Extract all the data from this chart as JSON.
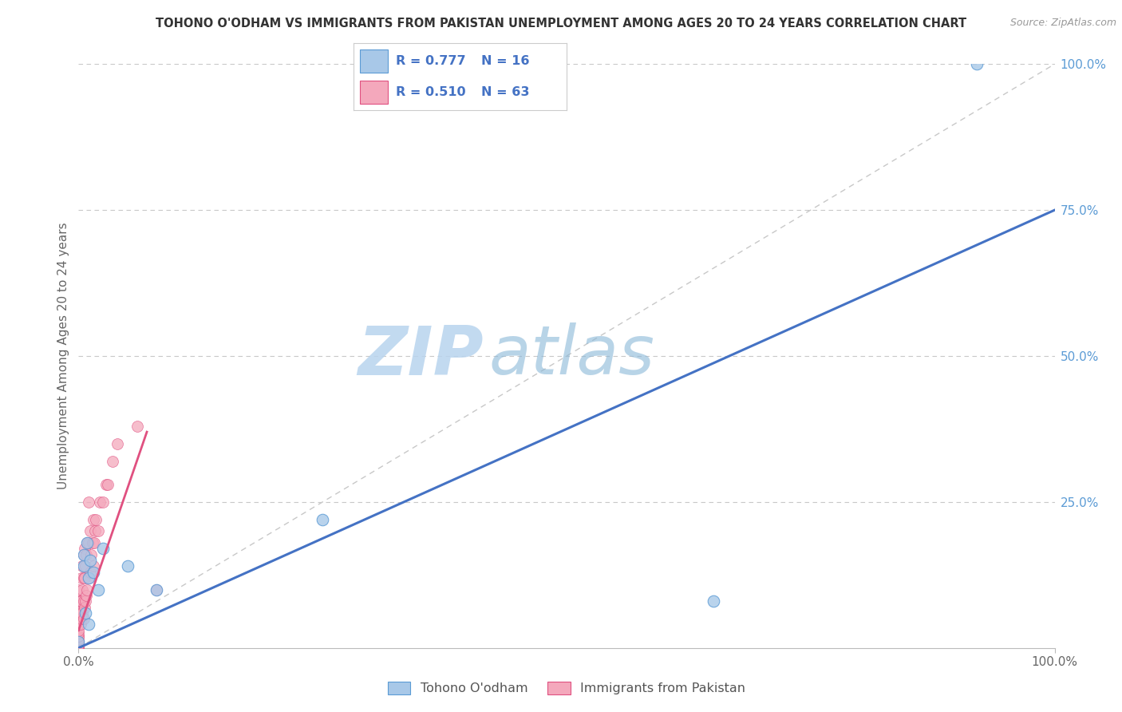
{
  "title": "TOHONO O'ODHAM VS IMMIGRANTS FROM PAKISTAN UNEMPLOYMENT AMONG AGES 20 TO 24 YEARS CORRELATION CHART",
  "source": "Source: ZipAtlas.com",
  "ylabel": "Unemployment Among Ages 20 to 24 years",
  "xlim": [
    0,
    1.0
  ],
  "ylim": [
    0,
    1.0
  ],
  "ytick_labels": [
    "25.0%",
    "50.0%",
    "75.0%",
    "100.0%"
  ],
  "ytick_positions": [
    0.25,
    0.5,
    0.75,
    1.0
  ],
  "watermark_zip": "ZIP",
  "watermark_atlas": "atlas",
  "legend_r1": "0.777",
  "legend_n1": "16",
  "legend_r2": "0.510",
  "legend_n2": "63",
  "color_blue_fill": "#a8c8e8",
  "color_blue_edge": "#5b9bd5",
  "color_pink_fill": "#f4a8bc",
  "color_pink_edge": "#e05080",
  "color_trend_blue": "#4472c4",
  "color_trend_pink": "#e05080",
  "color_diag": "#c8c8c8",
  "legend_label1": "Tohono O'odham",
  "legend_label2": "Immigrants from Pakistan",
  "title_color": "#333333",
  "axis_label_color": "#666666",
  "tick_label_color_right": "#5b9bd5",
  "blue_line_x": [
    0.0,
    1.0
  ],
  "blue_line_y": [
    0.0,
    0.75
  ],
  "pink_line_x": [
    0.0,
    0.07
  ],
  "pink_line_y": [
    0.03,
    0.37
  ],
  "tohono_x": [
    0.0,
    0.005,
    0.005,
    0.007,
    0.009,
    0.01,
    0.01,
    0.012,
    0.015,
    0.02,
    0.025,
    0.05,
    0.08,
    0.25,
    0.65,
    0.92
  ],
  "tohono_y": [
    0.01,
    0.14,
    0.16,
    0.06,
    0.18,
    0.04,
    0.12,
    0.15,
    0.13,
    0.1,
    0.17,
    0.14,
    0.1,
    0.22,
    0.08,
    1.0
  ],
  "pakistan_x": [
    0.0,
    0.0,
    0.0,
    0.0,
    0.0,
    0.0,
    0.0,
    0.0,
    0.0,
    0.0,
    0.0,
    0.0,
    0.0,
    0.0,
    0.0,
    0.0,
    0.0,
    0.0,
    0.0,
    0.0,
    0.002,
    0.002,
    0.002,
    0.003,
    0.003,
    0.003,
    0.004,
    0.004,
    0.004,
    0.005,
    0.005,
    0.005,
    0.005,
    0.006,
    0.006,
    0.006,
    0.007,
    0.007,
    0.008,
    0.008,
    0.009,
    0.009,
    0.01,
    0.01,
    0.01,
    0.012,
    0.012,
    0.013,
    0.014,
    0.015,
    0.015,
    0.016,
    0.017,
    0.018,
    0.02,
    0.022,
    0.025,
    0.028,
    0.03,
    0.035,
    0.04,
    0.06,
    0.08
  ],
  "pakistan_y": [
    0.0,
    0.0,
    0.0,
    0.0,
    0.0,
    0.005,
    0.005,
    0.01,
    0.01,
    0.015,
    0.02,
    0.02,
    0.025,
    0.03,
    0.04,
    0.05,
    0.06,
    0.07,
    0.08,
    0.1,
    0.04,
    0.06,
    0.08,
    0.05,
    0.08,
    0.12,
    0.06,
    0.1,
    0.14,
    0.05,
    0.08,
    0.12,
    0.16,
    0.07,
    0.12,
    0.17,
    0.08,
    0.14,
    0.09,
    0.16,
    0.1,
    0.18,
    0.12,
    0.18,
    0.25,
    0.13,
    0.2,
    0.16,
    0.18,
    0.14,
    0.22,
    0.18,
    0.2,
    0.22,
    0.2,
    0.25,
    0.25,
    0.28,
    0.28,
    0.32,
    0.35,
    0.38,
    0.1
  ]
}
